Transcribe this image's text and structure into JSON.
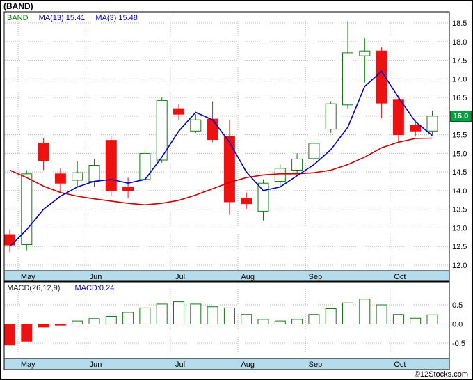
{
  "title": {
    "text": "(BAND)"
  },
  "main_chart": {
    "legend": {
      "symbol": "BAND",
      "ma13": "MA(13)  15.41",
      "ma3": "MA(3)  15.48"
    },
    "last_price_label": "16.0"
  },
  "macd_chart": {
    "legend": {
      "params": "MACD(26,12,9)",
      "value": "MACD:0.24"
    }
  },
  "footer": {
    "copyright": "©12Stocks.com"
  },
  "colors": {
    "up_outline": "#157a15",
    "down_fill": "#ee1111",
    "ma13_line": "#cc0000",
    "ma3_line": "#0000cc",
    "grid": "#b8b8b8",
    "month_strip": "#b6dcec",
    "price_tag_bg": "#00a13a",
    "price_tag_text": "#ffffff",
    "axis_text": "#000000"
  },
  "chart_data": [
    {
      "type": "candlestick",
      "symbol": "BAND",
      "y_ticks": [
        18.5,
        18.0,
        17.5,
        17.0,
        16.5,
        16.0,
        15.5,
        15.0,
        14.5,
        14.0,
        13.5,
        13.0,
        12.5,
        12.0
      ],
      "ylim": [
        11.85,
        18.8
      ],
      "months": [
        {
          "label": "May",
          "index": 1
        },
        {
          "label": "Jun",
          "index": 5
        },
        {
          "label": "Jul",
          "index": 10
        },
        {
          "label": "Aug",
          "index": 14
        },
        {
          "label": "Sep",
          "index": 18
        },
        {
          "label": "Oct",
          "index": 23
        }
      ],
      "candles": [
        [
          12.82,
          12.95,
          12.35,
          12.54
        ],
        [
          12.55,
          14.55,
          12.4,
          14.45
        ],
        [
          15.28,
          15.4,
          14.55,
          14.8
        ],
        [
          14.45,
          14.6,
          13.95,
          14.2
        ],
        [
          14.28,
          14.8,
          14.1,
          14.48
        ],
        [
          14.25,
          14.85,
          14.1,
          14.68
        ],
        [
          15.35,
          15.45,
          13.85,
          14.0
        ],
        [
          14.1,
          14.35,
          13.8,
          14.0
        ],
        [
          14.3,
          15.1,
          14.2,
          15.0
        ],
        [
          14.82,
          16.5,
          14.75,
          16.42
        ],
        [
          16.2,
          16.32,
          15.9,
          16.05
        ],
        [
          15.6,
          16.05,
          15.55,
          15.9
        ],
        [
          15.92,
          16.4,
          15.3,
          15.37
        ],
        [
          15.45,
          15.9,
          13.35,
          13.7
        ],
        [
          13.8,
          13.95,
          13.5,
          13.65
        ],
        [
          13.45,
          14.3,
          13.2,
          14.2
        ],
        [
          14.25,
          14.7,
          14.1,
          14.6
        ],
        [
          14.55,
          15.0,
          14.45,
          14.85
        ],
        [
          14.86,
          15.35,
          14.6,
          15.27
        ],
        [
          15.65,
          16.4,
          15.55,
          16.33
        ],
        [
          16.3,
          18.55,
          16.2,
          17.7
        ],
        [
          17.62,
          18.1,
          16.9,
          17.75
        ],
        [
          17.75,
          17.85,
          15.95,
          16.35
        ],
        [
          16.45,
          16.55,
          15.3,
          15.5
        ],
        [
          15.75,
          15.9,
          15.45,
          15.6
        ],
        [
          15.6,
          16.15,
          15.5,
          16.0
        ]
      ],
      "last_close": 16.0,
      "series": [
        {
          "name": "MA(13)",
          "value": 15.41,
          "color_key": "ma13_line",
          "values": [
            14.55,
            14.35,
            14.12,
            13.95,
            13.85,
            13.78,
            13.72,
            13.66,
            13.62,
            13.66,
            13.74,
            13.88,
            14.05,
            14.22,
            14.35,
            14.42,
            14.45,
            14.45,
            14.48,
            14.55,
            14.7,
            14.9,
            15.15,
            15.3,
            15.4,
            15.41
          ]
        },
        {
          "name": "MA(3)",
          "value": 15.48,
          "color_key": "ma3_line",
          "values": [
            12.5,
            12.95,
            13.5,
            13.85,
            14.1,
            14.25,
            14.3,
            14.2,
            14.3,
            14.9,
            15.6,
            16.1,
            15.9,
            15.3,
            14.5,
            14.0,
            14.1,
            14.4,
            14.7,
            15.1,
            15.7,
            16.8,
            17.2,
            16.5,
            15.85,
            15.48
          ]
        }
      ]
    },
    {
      "type": "bar",
      "name": "MACD(26,12,9)",
      "last_value": 0.24,
      "y_ticks": [
        0.5,
        0.0,
        -0.5
      ],
      "ylim": [
        -0.9,
        1.1
      ],
      "values": [
        -0.55,
        -0.45,
        -0.08,
        -0.03,
        0.08,
        0.14,
        0.2,
        0.3,
        0.42,
        0.52,
        0.58,
        0.52,
        0.45,
        0.42,
        0.25,
        0.12,
        0.08,
        0.12,
        0.25,
        0.4,
        0.55,
        0.65,
        0.5,
        0.25,
        0.15,
        0.24
      ]
    }
  ]
}
